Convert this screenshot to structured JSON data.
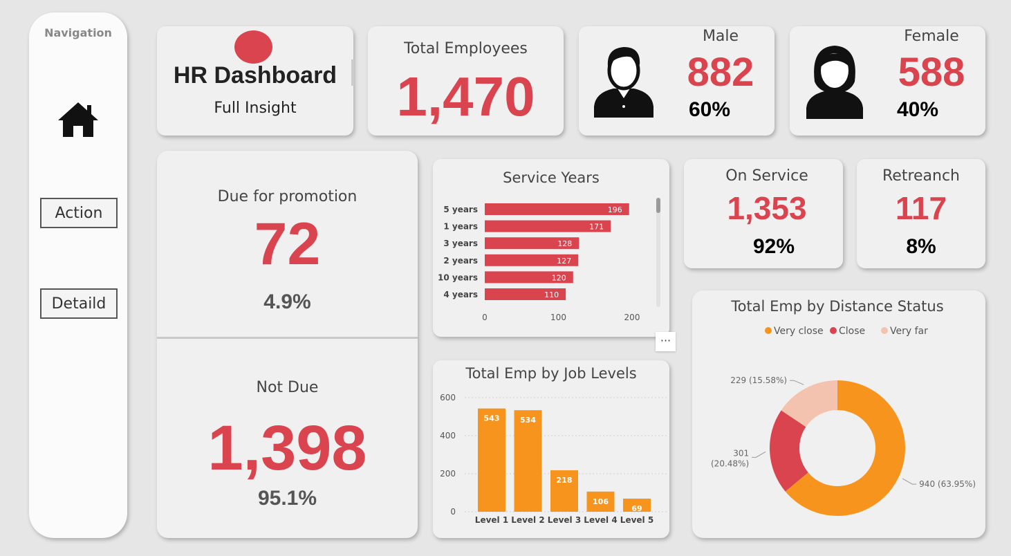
{
  "nav": {
    "title": "Navigation",
    "action_label": "Action",
    "detail_label": "Detaild"
  },
  "header": {
    "title": "HR Dashboard",
    "subtitle": "Full Insight"
  },
  "total": {
    "label": "Total Employees",
    "value": "1,470"
  },
  "male": {
    "label": "Male",
    "value": "882",
    "pct": "60%"
  },
  "female": {
    "label": "Female",
    "value": "588",
    "pct": "40%"
  },
  "promotion": {
    "due_label": "Due for promotion",
    "due_value": "72",
    "due_pct": "4.9%",
    "not_due_label": "Not Due",
    "not_due_value": "1,398",
    "not_due_pct": "95.1%"
  },
  "on_service": {
    "label": "On Service",
    "value": "1,353",
    "pct": "92%"
  },
  "retrench": {
    "label": "Retreanch",
    "value": "117",
    "pct": "8%"
  },
  "more_icon": "···",
  "colors": {
    "accent": "#d9444f",
    "orange": "#f7941d",
    "pale": "#f4c3b0"
  },
  "chart_data": [
    {
      "type": "bar",
      "orientation": "horizontal",
      "title": "Service Years",
      "categories": [
        "5 years",
        "1 years",
        "3 years",
        "2 years",
        "10 years",
        "4 years"
      ],
      "values": [
        196,
        171,
        128,
        127,
        120,
        110
      ],
      "xticks": [
        "0",
        "100",
        "200"
      ],
      "xlim": [
        0,
        200
      ]
    },
    {
      "type": "bar",
      "title": "Total Emp by Job Levels",
      "categories": [
        "Level 1",
        "Level 2",
        "Level 3",
        "Level 4",
        "Level 5"
      ],
      "values": [
        543,
        534,
        218,
        106,
        69
      ],
      "yticks": [
        "0",
        "200",
        "400",
        "600"
      ],
      "ylim": [
        0,
        600
      ]
    },
    {
      "type": "pie",
      "title": "Total Emp by Distance Status",
      "legend_position": "top",
      "series": [
        {
          "name": "Very close",
          "value": 940,
          "label": "940 (63.95%)"
        },
        {
          "name": "Close",
          "value": 301,
          "label": "301 (20.48%)"
        },
        {
          "name": "Very far",
          "value": 229,
          "label": "229 (15.58%)"
        }
      ]
    }
  ]
}
